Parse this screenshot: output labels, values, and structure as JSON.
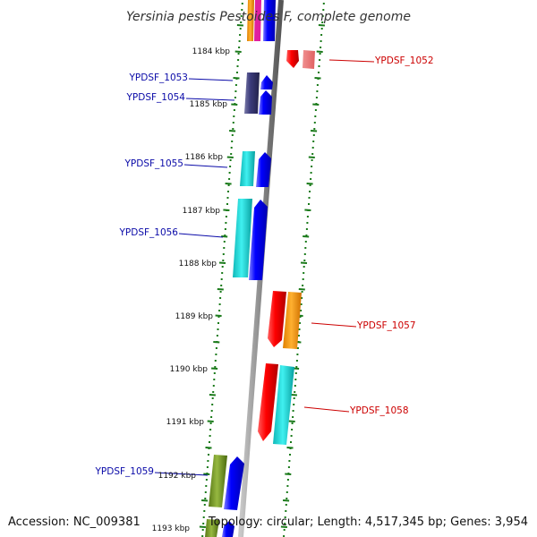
{
  "title": "Yersinia pestis Pestoides F, complete genome",
  "footer": {
    "accession": "Accession: NC_009381",
    "topology": "Topology: circular; Length: 4,517,345 bp; Genes: 3,954"
  },
  "ticks": [
    {
      "label": "1184 kbp",
      "pos": 1184
    },
    {
      "label": "1185 kbp",
      "pos": 1185
    },
    {
      "label": "1186 kbp",
      "pos": 1186
    },
    {
      "label": "1187 kbp",
      "pos": 1187
    },
    {
      "label": "1188 kbp",
      "pos": 1188
    },
    {
      "label": "1189 kbp",
      "pos": 1189
    },
    {
      "label": "1190 kbp",
      "pos": 1190
    },
    {
      "label": "1191 kbp",
      "pos": 1191
    },
    {
      "label": "1192 kbp",
      "pos": 1192
    },
    {
      "label": "1193 kbp",
      "pos": 1193
    }
  ],
  "genes": [
    {
      "label": "YPDSF_1052",
      "strand": "+"
    },
    {
      "label": "YPDSF_1053",
      "strand": "-"
    },
    {
      "label": "YPDSF_1054",
      "strand": "-"
    },
    {
      "label": "YPDSF_1055",
      "strand": "-"
    },
    {
      "label": "YPDSF_1056",
      "strand": "-"
    },
    {
      "label": "YPDSF_1057",
      "strand": "+"
    },
    {
      "label": "YPDSF_1058",
      "strand": "+"
    },
    {
      "label": "YPDSF_1059",
      "strand": "-"
    }
  ],
  "colors": {
    "forward_label": "#cc0000",
    "reverse_label": "#0a0aa8",
    "tick": "#1a7a1a",
    "backbone": "#8a8a8a"
  }
}
